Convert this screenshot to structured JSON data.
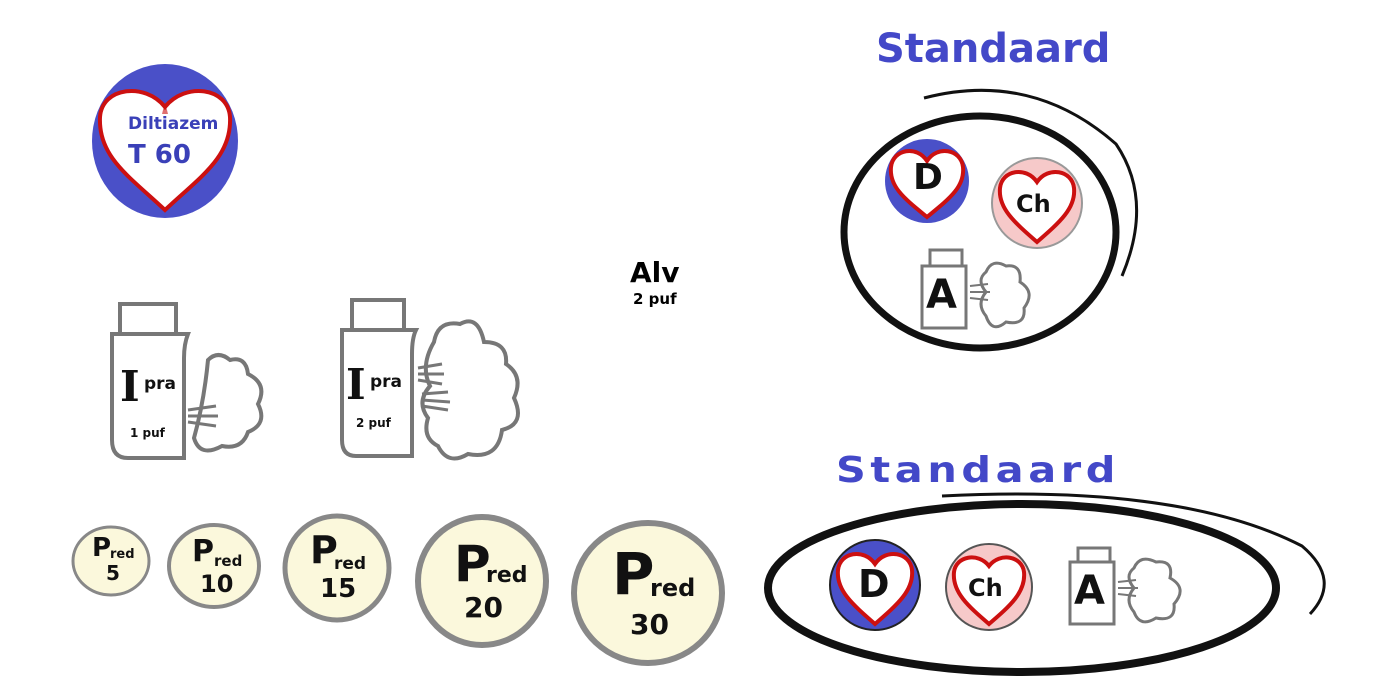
{
  "diltiazem": {
    "name": "Diltiazem",
    "dose": "T 60"
  },
  "ipra_1": {
    "letter": "I",
    "label": "pra",
    "dose": "1 puf"
  },
  "ipra_2": {
    "letter": "I",
    "label": "pra",
    "dose": "2 puf"
  },
  "alv": {
    "label": "Alv",
    "dose": "2 puf"
  },
  "pred": {
    "letter": "P",
    "sub": "red",
    "pills": [
      {
        "dose": "5"
      },
      {
        "dose": "10"
      },
      {
        "dose": "15"
      },
      {
        "dose": "20"
      },
      {
        "dose": "30"
      }
    ]
  },
  "standaard_round": {
    "title": "Standaard",
    "d_label": "D",
    "ch_label": "Ch",
    "a_label": "A"
  },
  "standaard_oval": {
    "title": "Standaard",
    "d_label": "D",
    "ch_label": "Ch",
    "a_label": "A"
  },
  "colors": {
    "blue": "#4a50c8",
    "heart_red": "#cc1010",
    "pill_cream": "#fbf8dc",
    "pill_border": "#888888",
    "pink": "#f6c9c9"
  }
}
